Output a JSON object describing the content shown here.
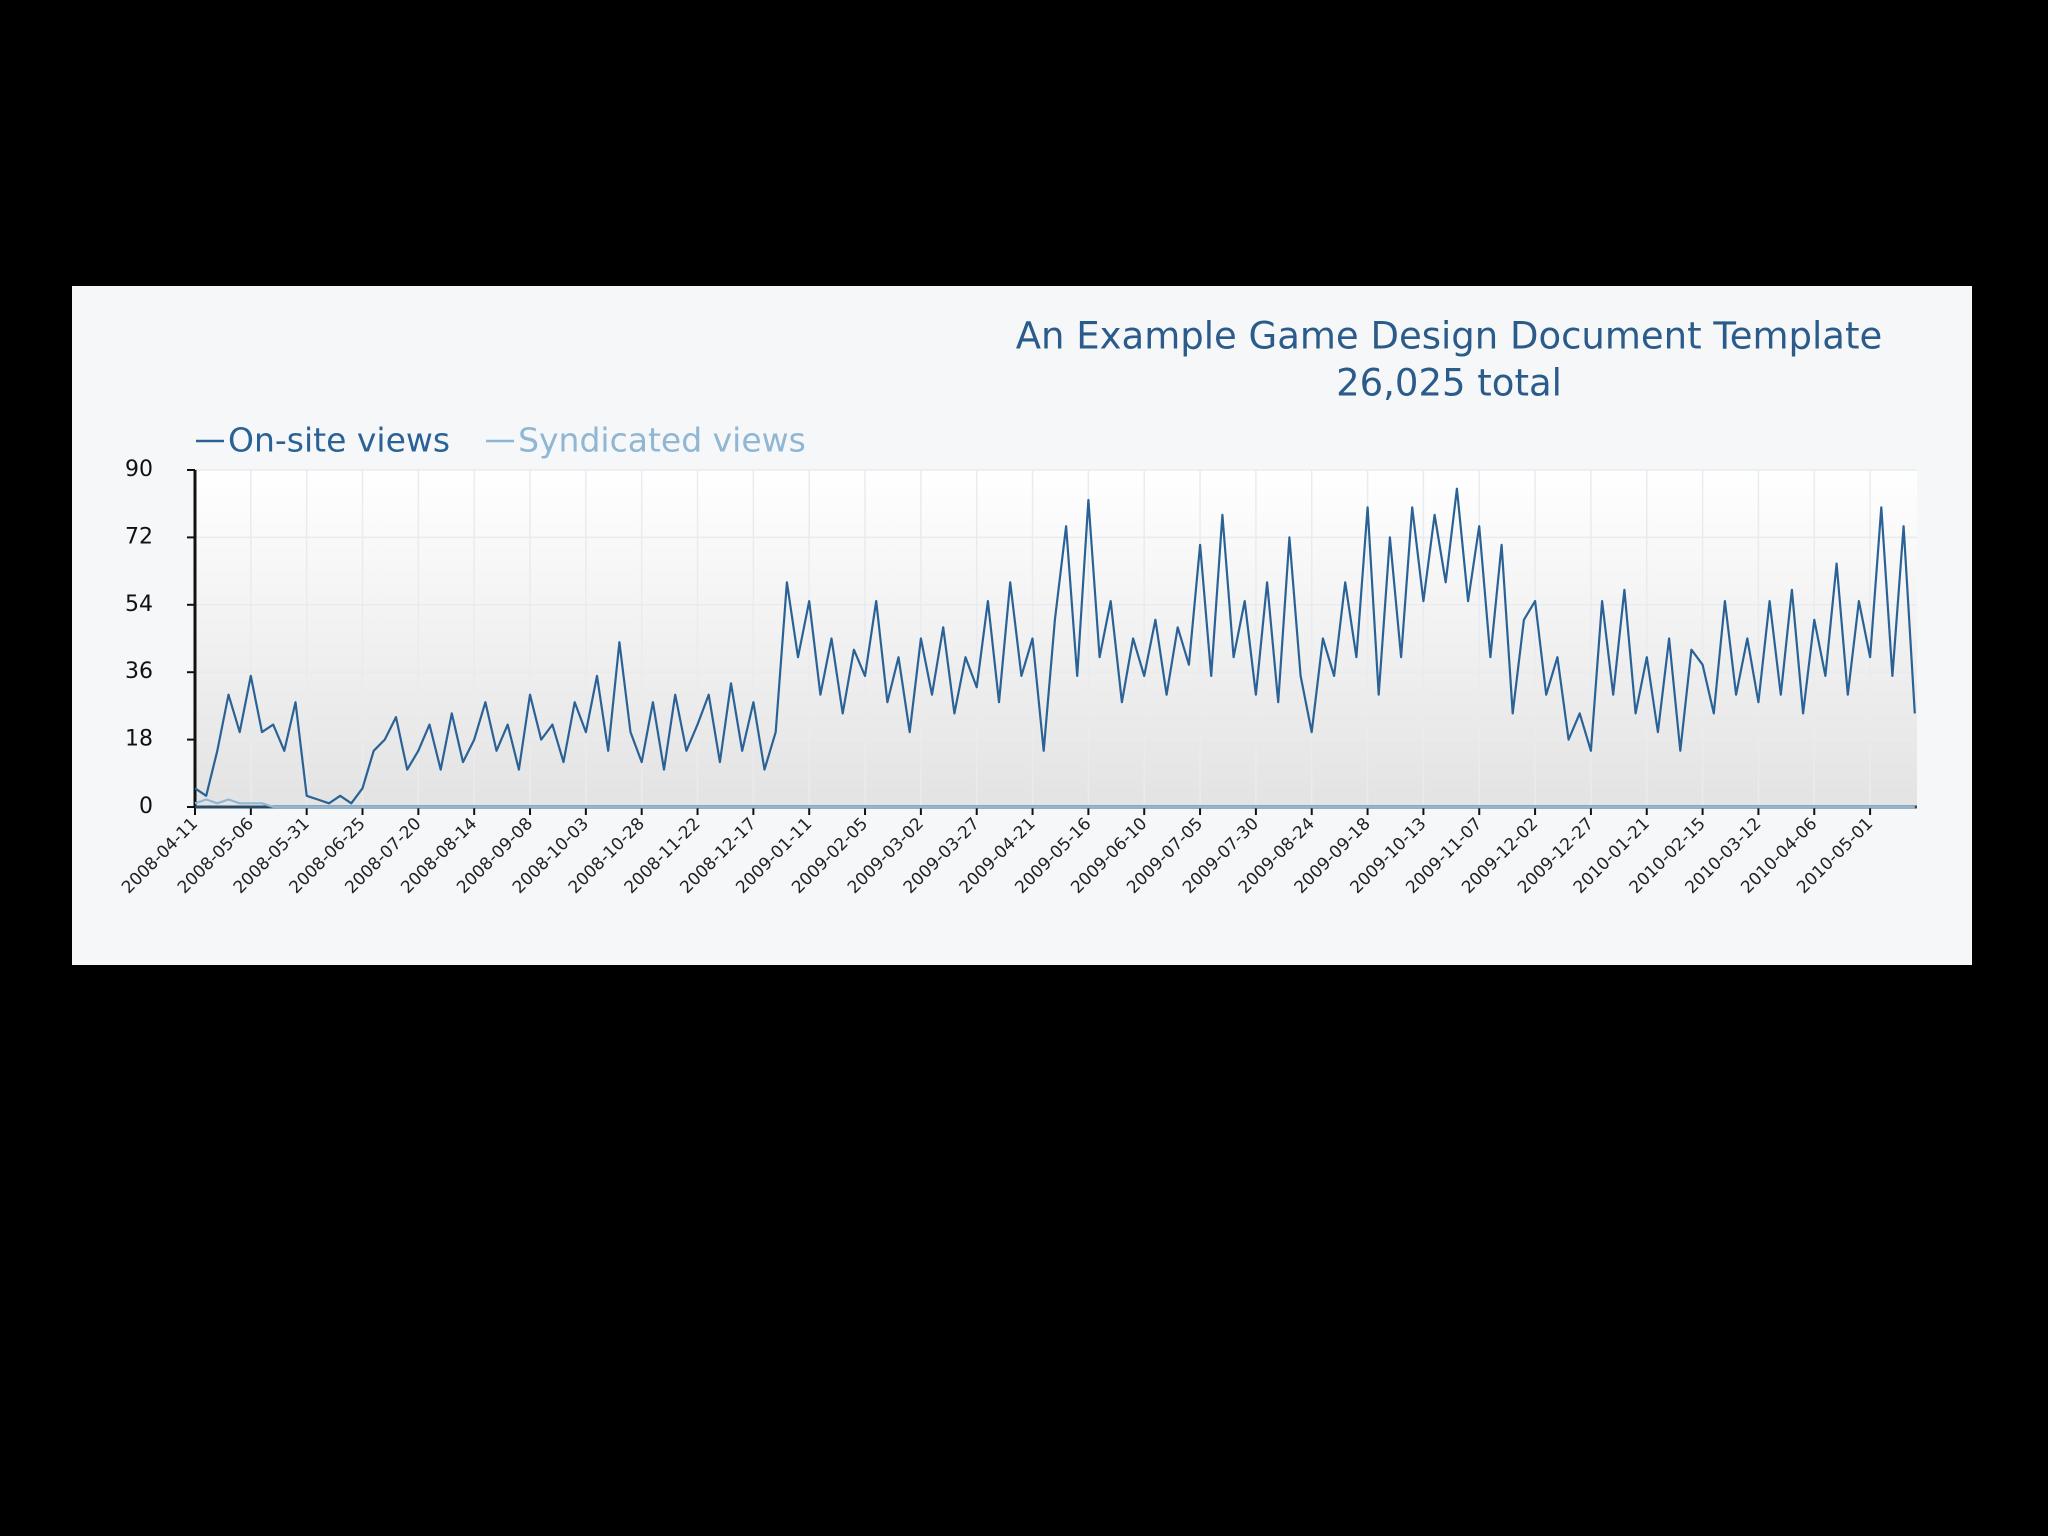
{
  "chart_data": {
    "type": "line",
    "title": "An Example Game Design Document Template",
    "subtitle": "26,025 total",
    "x": [
      "2008-04-11",
      "2008-04-16",
      "2008-04-21",
      "2008-04-26",
      "2008-05-01",
      "2008-05-06",
      "2008-05-11",
      "2008-05-16",
      "2008-05-21",
      "2008-05-26",
      "2008-05-31",
      "2008-06-05",
      "2008-06-10",
      "2008-06-15",
      "2008-06-20",
      "2008-06-25",
      "2008-06-30",
      "2008-07-05",
      "2008-07-10",
      "2008-07-15",
      "2008-07-20",
      "2008-07-25",
      "2008-07-30",
      "2008-08-04",
      "2008-08-09",
      "2008-08-14",
      "2008-08-19",
      "2008-08-24",
      "2008-08-29",
      "2008-09-03",
      "2008-09-08",
      "2008-09-13",
      "2008-09-18",
      "2008-09-23",
      "2008-09-28",
      "2008-10-03",
      "2008-10-08",
      "2008-10-13",
      "2008-10-18",
      "2008-10-23",
      "2008-10-28",
      "2008-11-02",
      "2008-11-07",
      "2008-11-12",
      "2008-11-17",
      "2008-11-22",
      "2008-11-27",
      "2008-12-02",
      "2008-12-07",
      "2008-12-12",
      "2008-12-17",
      "2008-12-22",
      "2008-12-27",
      "2009-01-01",
      "2009-01-06",
      "2009-01-11",
      "2009-01-16",
      "2009-01-21",
      "2009-01-26",
      "2009-01-31",
      "2009-02-05",
      "2009-02-10",
      "2009-02-15",
      "2009-02-20",
      "2009-02-25",
      "2009-03-02",
      "2009-03-07",
      "2009-03-12",
      "2009-03-17",
      "2009-03-22",
      "2009-03-27",
      "2009-04-01",
      "2009-04-06",
      "2009-04-11",
      "2009-04-16",
      "2009-04-21",
      "2009-04-26",
      "2009-05-01",
      "2009-05-06",
      "2009-05-11",
      "2009-05-16",
      "2009-05-21",
      "2009-05-26",
      "2009-05-31",
      "2009-06-05",
      "2009-06-10",
      "2009-06-15",
      "2009-06-20",
      "2009-06-25",
      "2009-06-30",
      "2009-07-05",
      "2009-07-10",
      "2009-07-15",
      "2009-07-20",
      "2009-07-25",
      "2009-07-30",
      "2009-08-04",
      "2009-08-09",
      "2009-08-14",
      "2009-08-19",
      "2009-08-24",
      "2009-08-29",
      "2009-09-03",
      "2009-09-08",
      "2009-09-13",
      "2009-09-18",
      "2009-09-23",
      "2009-09-28",
      "2009-10-03",
      "2009-10-08",
      "2009-10-13",
      "2009-10-18",
      "2009-10-23",
      "2009-10-28",
      "2009-11-02",
      "2009-11-07",
      "2009-11-12",
      "2009-11-17",
      "2009-11-22",
      "2009-11-27",
      "2009-12-02",
      "2009-12-07",
      "2009-12-12",
      "2009-12-17",
      "2009-12-22",
      "2009-12-27",
      "2010-01-01",
      "2010-01-06",
      "2010-01-11",
      "2010-01-16",
      "2010-01-21",
      "2010-01-26",
      "2010-01-31",
      "2010-02-05",
      "2010-02-10",
      "2010-02-15",
      "2010-02-20",
      "2010-02-25",
      "2010-03-02",
      "2010-03-07",
      "2010-03-12",
      "2010-03-17",
      "2010-03-22",
      "2010-03-27",
      "2010-04-01",
      "2010-04-06",
      "2010-04-11",
      "2010-04-16",
      "2010-04-21",
      "2010-04-26",
      "2010-05-01",
      "2010-05-06",
      "2010-05-11",
      "2010-05-16",
      "2010-05-21"
    ],
    "series": [
      {
        "name": "On-site views",
        "color": "#2b6296",
        "values": [
          5,
          3,
          15,
          30,
          20,
          35,
          20,
          22,
          15,
          28,
          3,
          2,
          1,
          3,
          1,
          5,
          15,
          18,
          24,
          10,
          15,
          22,
          10,
          25,
          12,
          18,
          28,
          15,
          22,
          10,
          30,
          18,
          22,
          12,
          28,
          20,
          35,
          15,
          44,
          20,
          12,
          28,
          10,
          30,
          15,
          22,
          30,
          12,
          33,
          15,
          28,
          10,
          20,
          60,
          40,
          55,
          30,
          45,
          25,
          42,
          35,
          55,
          28,
          40,
          20,
          45,
          30,
          48,
          25,
          40,
          32,
          55,
          28,
          60,
          35,
          45,
          15,
          50,
          75,
          35,
          82,
          40,
          55,
          28,
          45,
          35,
          50,
          30,
          48,
          38,
          70,
          35,
          78,
          40,
          55,
          30,
          60,
          28,
          72,
          35,
          20,
          45,
          35,
          60,
          40,
          80,
          30,
          72,
          40,
          80,
          55,
          78,
          60,
          85,
          55,
          75,
          40,
          70,
          25,
          50,
          55,
          30,
          40,
          18,
          25,
          15,
          55,
          30,
          58,
          25,
          40,
          20,
          45,
          15,
          42,
          38,
          25,
          55,
          30,
          45,
          28,
          55,
          30,
          58,
          25,
          50,
          35,
          65,
          30,
          55,
          40,
          80,
          35,
          75,
          25
        ]
      },
      {
        "name": "Syndicated views",
        "color": "#8fb6d3",
        "values": [
          1,
          2,
          1,
          2,
          1,
          1,
          1,
          0,
          0,
          0,
          0,
          0,
          0,
          0,
          0,
          0,
          0,
          0,
          0,
          0,
          0,
          0,
          0,
          0,
          0,
          0,
          0,
          0,
          0,
          0,
          0,
          0,
          0,
          0,
          0,
          0,
          0,
          0,
          0,
          0,
          0,
          0,
          0,
          0,
          0,
          0,
          0,
          0,
          0,
          0,
          0,
          0,
          0,
          0,
          0,
          0,
          0,
          0,
          0,
          0,
          0,
          0,
          0,
          0,
          0,
          0,
          0,
          0,
          0,
          0,
          0,
          0,
          0,
          0,
          0,
          0,
          0,
          0,
          0,
          0,
          0,
          0,
          0,
          0,
          0,
          0,
          0,
          0,
          0,
          0,
          0,
          0,
          0,
          0,
          0,
          0,
          0,
          0,
          0,
          0,
          0,
          0,
          0,
          0,
          0,
          0,
          0,
          0,
          0,
          0,
          0,
          0,
          0,
          0,
          0,
          0,
          0,
          0,
          0,
          0,
          0,
          0,
          0,
          0,
          0,
          0,
          0,
          0,
          0,
          0,
          0,
          0,
          0,
          0,
          0,
          0,
          0,
          0,
          0,
          0,
          0,
          0,
          0,
          0,
          0,
          0,
          0,
          0,
          0,
          0,
          0,
          0,
          0,
          0,
          0
        ]
      }
    ],
    "xlim": [
      "2008-04-11",
      "2010-05-22"
    ],
    "xticks": [
      "2008-04-11",
      "2008-05-06",
      "2008-05-31",
      "2008-06-25",
      "2008-07-20",
      "2008-08-14",
      "2008-09-08",
      "2008-10-03",
      "2008-10-28",
      "2008-11-22",
      "2008-12-17",
      "2009-01-11",
      "2009-02-05",
      "2009-03-02",
      "2009-03-27",
      "2009-04-21",
      "2009-05-16",
      "2009-06-10",
      "2009-07-05",
      "2009-07-30",
      "2009-08-24",
      "2009-09-18",
      "2009-10-13",
      "2009-11-07",
      "2009-12-02",
      "2009-12-27",
      "2010-01-21",
      "2010-02-15",
      "2010-03-12",
      "2010-04-06",
      "2010-05-01"
    ],
    "ylim": [
      0,
      90
    ],
    "yticks": [
      0,
      18,
      36,
      54,
      72,
      90
    ],
    "grid": true,
    "legend": "top-left"
  }
}
